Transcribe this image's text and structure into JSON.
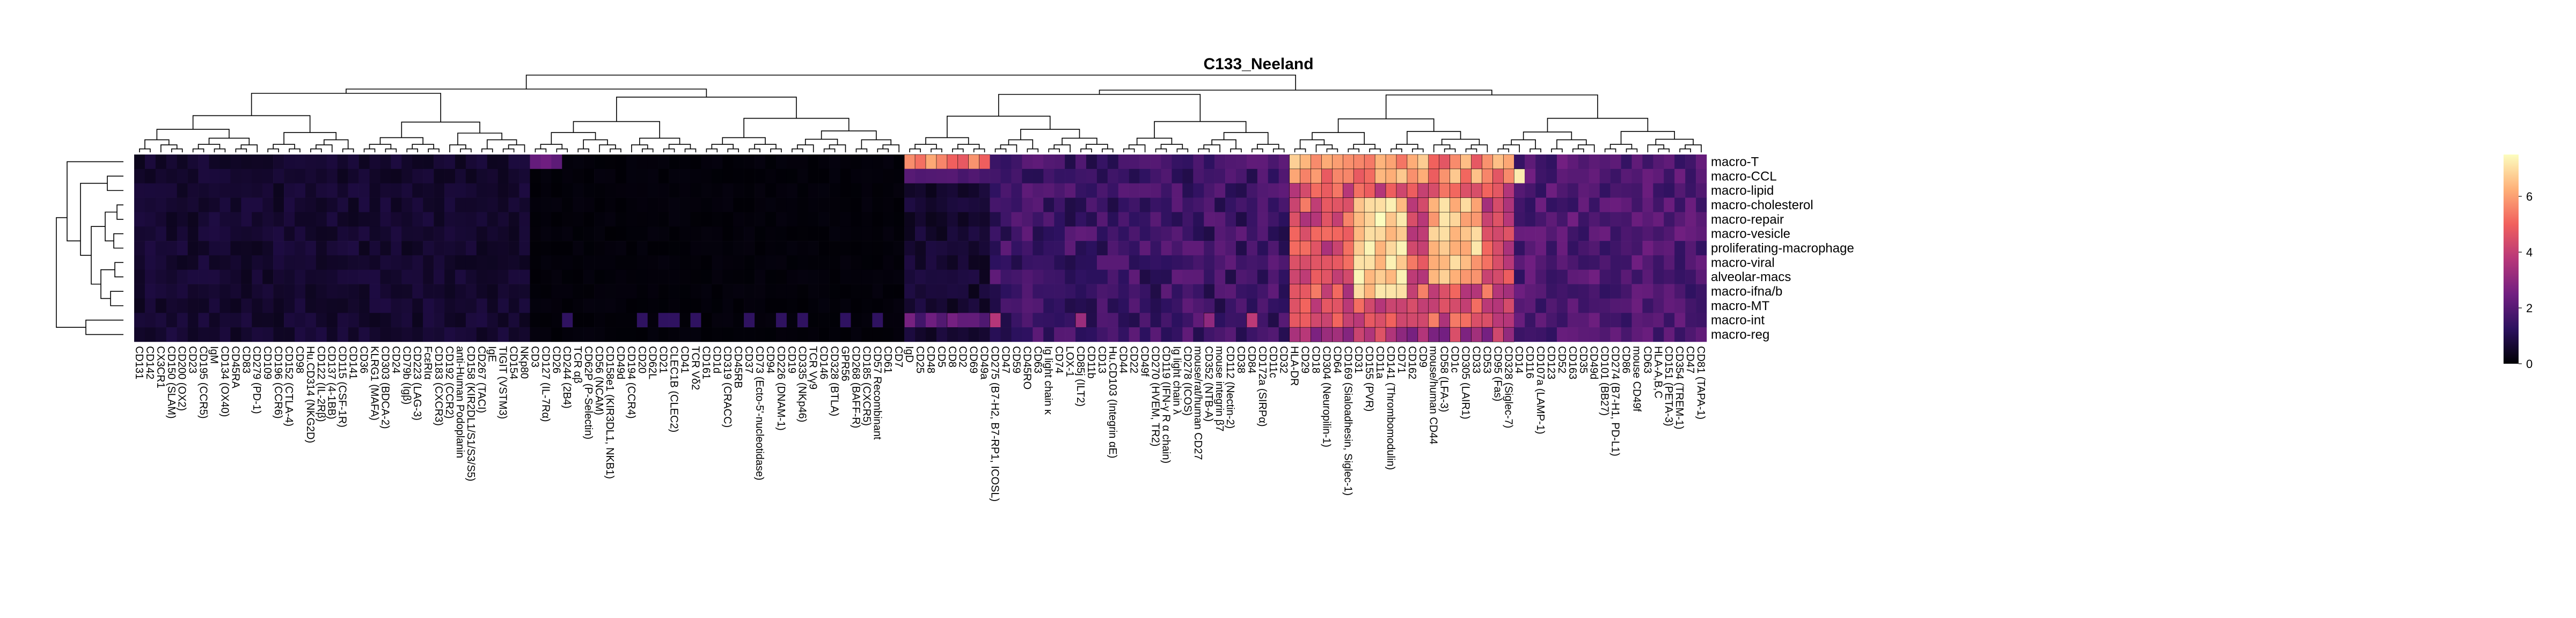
{
  "chart_data": {
    "type": "heatmap",
    "title": "C133_Neeland",
    "rows": [
      "macro-T",
      "macro-CCL",
      "macro-lipid",
      "macro-cholesterol",
      "macro-repair",
      "macro-vesicle",
      "proliferating-macrophage",
      "macro-viral",
      "alveolar-macs",
      "macro-ifna/b",
      "macro-MT",
      "macro-int",
      "macro-reg"
    ],
    "columns": [
      "CD131",
      "CD142",
      "CX3CR1",
      "CD150 (SLAM)",
      "CD200 (OX2)",
      "CD23",
      "CD195 (CCR5)",
      "IgM",
      "CD134 (OX40)",
      "CD45RA",
      "CD83",
      "CD279 (PD-1)",
      "CD109",
      "CD196 (CCR6)",
      "CD152 (CTLA-4)",
      "CD98",
      "Hu.CD314 (NKG2D)",
      "CD122 (IL-2Rβ)",
      "CD137 (4-1BB)",
      "CD115 (CSF-1R)",
      "CD141",
      "CD36",
      "KLRG1 (MAFA)",
      "CD303 (BDCA-2)",
      "CD24",
      "CD79b (Igβ)",
      "CD223 (LAG-3)",
      "FcεRIα",
      "CD183 (CXCR3)",
      "CD192 (CCR2)",
      "anti-Human Podoplanin",
      "CD158 (KIR2DL1/S1/S3/S5)",
      "CD267 (TACI)",
      "IgE",
      "TIGIT (VSTM3)",
      "CD154",
      "NKp80",
      "CD3",
      "CD127 (IL-7Rα)",
      "CD26",
      "CD244 (2B4)",
      "TCR αβ",
      "CD62P (P-Selectin)",
      "CD56 (NCAM)",
      "CD158e1 (KIR3DL1, NKB1)",
      "CD49d",
      "CD194 (CCR4)",
      "CD20",
      "CD62L",
      "CD21",
      "CLEC1B (CLEC2)",
      "CD41",
      "TCR Vδ2",
      "CD161",
      "CD1d",
      "CD319 (CRACC)",
      "CD45RB",
      "CD37",
      "CD73 (Ecto-5'-nucleotidase)",
      "CD94",
      "CD226 (DNAM-1)",
      "CD19",
      "CD335 (NKp46)",
      "TCR Vγ9",
      "CD146",
      "CD328 (BTLA)",
      "GPR56",
      "CD268 (BAFF-R)",
      "CD185 (CXCR5)",
      "CD57 Recombinant",
      "CD61",
      "CD7",
      "IgD",
      "CD25",
      "CD48",
      "CD5",
      "CD8",
      "CD2",
      "CD69",
      "CD49a",
      "CD275 (B7-H2, B7-RP1, ICOSL)",
      "CD47",
      "CD59",
      "CD45RO",
      "CD63",
      "Ig light chain κ",
      "CD74",
      "LOX-1",
      "CD85j (ILT2)",
      "CD11b",
      "CD13",
      "Hu.CD103 (Integrin αE)",
      "CD44",
      "CD22",
      "CD49f",
      "CD270 (HVEM, TR2)",
      "CD119 (IFN-γ R α chain)",
      "Ig light chain λ",
      "CD278 (ICOS)",
      "mouse/rat/human CD27",
      "CD352 (NTB-A)",
      "mouse integrin β7",
      "CD112 (Nectin-2)",
      "CD38",
      "CD84",
      "CD172a (SIRPα)",
      "CD11c",
      "CD32",
      "HLA-DR",
      "CD29",
      "CD18",
      "CD304 (Neuropilin-1)",
      "CD64",
      "CD169 (Sialoadhesin, Siglec-1)",
      "CD31",
      "CD155 (PVR)",
      "CD11a",
      "CD141 (Thrombomodulin)",
      "CD71",
      "CD162",
      "CD9",
      "mouse/human CD44",
      "CD58 (LFA-3)",
      "CD1c",
      "CD305 (LAIR1)",
      "CD33",
      "CD53",
      "CD95 (Fas)",
      "CD328 (Siglec-7)",
      "CD14",
      "CD116",
      "CD107a (LAMP-1)",
      "CD123",
      "CD52",
      "CD163",
      "CD35",
      "CD49d",
      "CD101 (BB27)",
      "CD274 (B7-H1, PD-L1)",
      "CD86",
      "mouse CD49f",
      "CD63",
      "HLA-A,B,C",
      "CD151 (PETA-3)",
      "CD354 (TREM-1)",
      "CD47",
      "CD81 (TAPA-1)"
    ],
    "value_range": [
      0,
      7.5
    ],
    "colorbar_ticks": [
      "0",
      "2",
      "4",
      "6"
    ],
    "colormap": [
      "#000004",
      "#2c115f",
      "#721f81",
      "#b73779",
      "#f1605d",
      "#feb078",
      "#fcfdbf"
    ],
    "dendrogram_columns_top": true,
    "dendrogram_rows_left": true,
    "legend_position": "right"
  }
}
